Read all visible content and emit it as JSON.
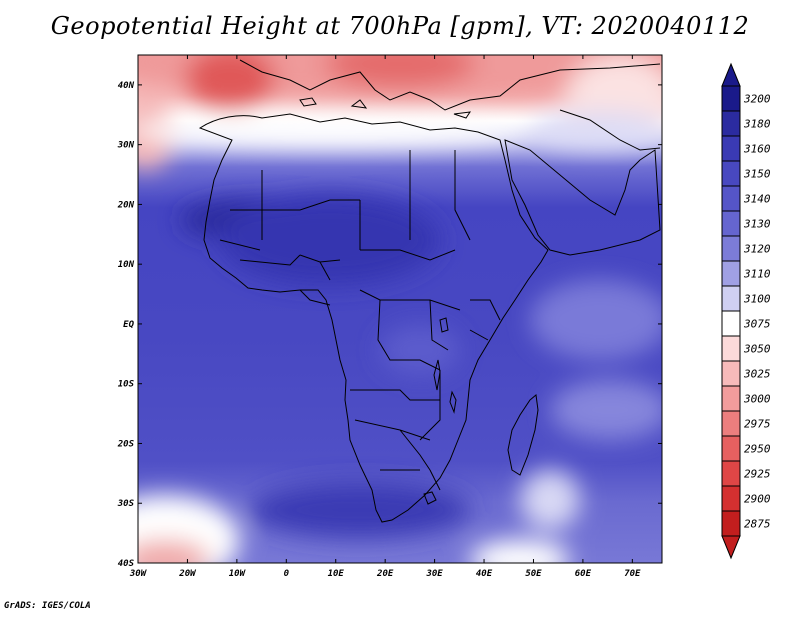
{
  "title": "Geopotential Height at 700hPa [gpm], VT: 2020040112",
  "credit": "GrADS: IGES/COLA",
  "lat_labels": [
    "40N",
    "30N",
    "20N",
    "10N",
    "EQ",
    "10S",
    "20S",
    "30S",
    "40S"
  ],
  "lon_labels": [
    "30W",
    "20W",
    "10W",
    "0",
    "10E",
    "20E",
    "30E",
    "40E",
    "50E",
    "60E",
    "70E"
  ],
  "colorbar": {
    "levels": [
      "3200",
      "3180",
      "3160",
      "3150",
      "3140",
      "3130",
      "3120",
      "3110",
      "3100",
      "3075",
      "3050",
      "3025",
      "3000",
      "2975",
      "2950",
      "2925",
      "2900",
      "2875"
    ],
    "colors": [
      "#1a1a8a",
      "#2b2ba0",
      "#3a3ab4",
      "#4848c0",
      "#5555c8",
      "#6565cf",
      "#7c7cd8",
      "#a0a0e4",
      "#d0d0f2",
      "#ffffff",
      "#fcdada",
      "#f7baba",
      "#f29c9c",
      "#ec7e7e",
      "#e66060",
      "#df4646",
      "#d43030",
      "#c21e1e"
    ]
  },
  "map": {
    "lat_range": [
      -40,
      45
    ],
    "lon_range": [
      -30,
      76
    ]
  }
}
